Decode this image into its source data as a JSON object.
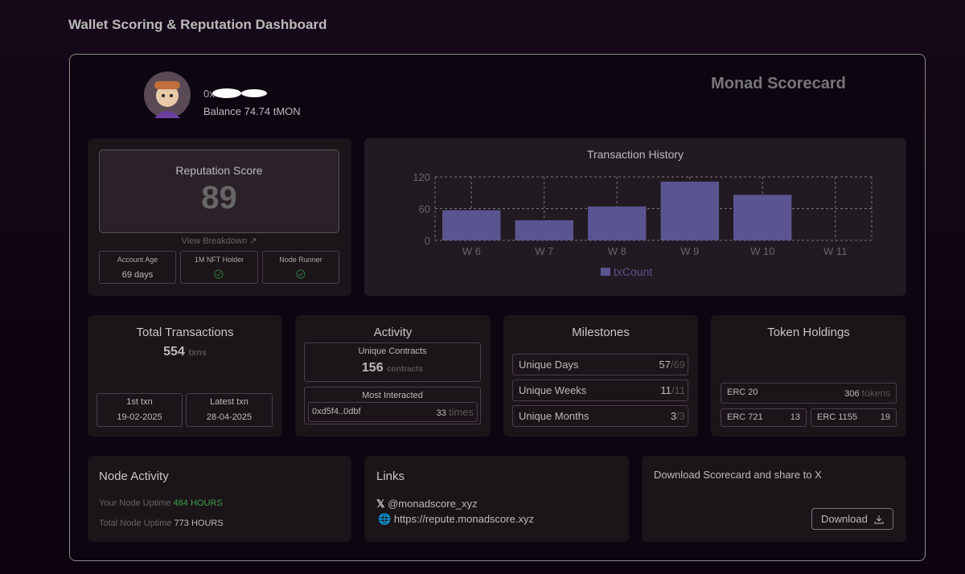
{
  "header": {
    "title": "Wallet Scoring & Reputation Dashboard"
  },
  "profile": {
    "address": "0x",
    "balance": "Balance 74.74 tMON"
  },
  "scorecard_title": "Monad Scorecard",
  "reputation": {
    "title": "Reputation Score",
    "score": 89,
    "link": "View Breakdown",
    "badges": [
      {
        "label": "Account Age",
        "value": "69 days"
      },
      {
        "label": "1M NFT Holder"
      },
      {
        "label": "Node Runner"
      }
    ]
  },
  "transaction_history": {
    "type": "bar",
    "title": "Transaction History",
    "categories": [
      "W 6",
      "W 7",
      "W 8",
      "W 9",
      "W 10",
      "W 11"
    ],
    "series": [
      {
        "name": "txCount",
        "color": "#5a5590",
        "values": [
          57,
          38,
          64,
          111,
          86,
          0
        ]
      }
    ],
    "ylim": [
      0,
      120
    ],
    "yticks": [
      0,
      60,
      120
    ],
    "grid": true,
    "legend": "bottom"
  },
  "total_transactions": {
    "title": "Total Transactions",
    "value": 554,
    "unit": "txns",
    "first": {
      "label": "1st txn",
      "date": "19-02-2025"
    },
    "latest": {
      "label": "Latest txn",
      "date": "28-04-2025"
    }
  },
  "activity": {
    "title": "Activity",
    "unique_contracts": {
      "label": "Unique Contracts",
      "value": 156,
      "unit": "contracts"
    },
    "most_interacted": {
      "label": "Most Interacted",
      "address": "0xd5f4..0dbf",
      "value": 33,
      "unit": "times"
    }
  },
  "milestones": {
    "title": "Milestones",
    "rows": [
      {
        "label": "Unique Days",
        "value": 57,
        "total": "/69"
      },
      {
        "label": "Unique Weeks",
        "value": 11,
        "total": "/11"
      },
      {
        "label": "Unique Months",
        "value": 3,
        "total": "/3"
      }
    ]
  },
  "token_holdings": {
    "title": "Token Holdings",
    "erc20": {
      "label": "ERC 20",
      "value": 306,
      "unit": "tokens"
    },
    "erc721": {
      "label": "ERC 721",
      "value": 13
    },
    "erc1155": {
      "label": "ERC 1155",
      "value": 19
    }
  },
  "node_activity": {
    "title": "Node Activity",
    "your_uptime": {
      "label": "Your Node Uptime",
      "value": "484 HOURS"
    },
    "total_uptime": {
      "label": "Total Node Uptime",
      "value": "773 HOURS"
    }
  },
  "links": {
    "title": "Links",
    "x": "@monadscore_xyz",
    "web": "https://repute.monadscore.xyz"
  },
  "download": {
    "text": "Download Scorecard and share to X",
    "button": "Download"
  }
}
